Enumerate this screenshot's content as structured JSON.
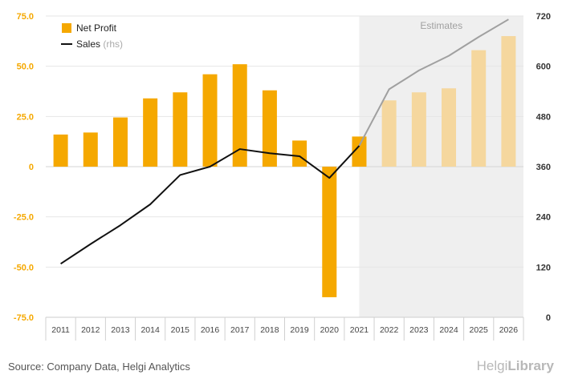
{
  "chart_data": {
    "type": "bar+line",
    "categories": [
      "2011",
      "2012",
      "2013",
      "2014",
      "2015",
      "2016",
      "2017",
      "2018",
      "2019",
      "2020",
      "2021",
      "2022",
      "2023",
      "2024",
      "2025",
      "2026"
    ],
    "series": [
      {
        "name": "Net Profit",
        "type": "bar",
        "axis": "left",
        "color": "#f5a800",
        "estimate_color": "#f5d79e",
        "values": [
          16,
          17,
          24.5,
          34,
          37,
          46,
          51,
          38,
          13,
          -65,
          15,
          33,
          37,
          39,
          58,
          65
        ]
      },
      {
        "name": "Sales",
        "name_suffix": "(rhs)",
        "type": "line",
        "axis": "right",
        "color": "#111111",
        "estimate_color": "#a0a0a0",
        "values": [
          128,
          175,
          220,
          270,
          340,
          360,
          402,
          392,
          385,
          333,
          410,
          545,
          590,
          625,
          670,
          712
        ]
      }
    ],
    "estimates_label": "Estimates",
    "estimates_start_index": 11,
    "yleft": {
      "min": -75,
      "max": 75,
      "ticks": [
        75,
        50,
        25,
        0,
        -25,
        -50,
        -75
      ],
      "tick_labels": [
        "75.0",
        "50.0",
        "25.0",
        "0",
        "-25.0",
        "-50.0",
        "-75.0"
      ]
    },
    "yright": {
      "min": 0,
      "max": 720,
      "ticks": [
        720,
        600,
        480,
        360,
        240,
        120,
        0
      ],
      "tick_labels": [
        "720",
        "600",
        "480",
        "360",
        "240",
        "120",
        "0"
      ]
    },
    "grid": true,
    "legend_position": "top-left"
  },
  "footer": {
    "source": "Source: Company Data, Helgi Analytics",
    "logo_brand": "Helgi",
    "logo_suffix": "Library"
  }
}
